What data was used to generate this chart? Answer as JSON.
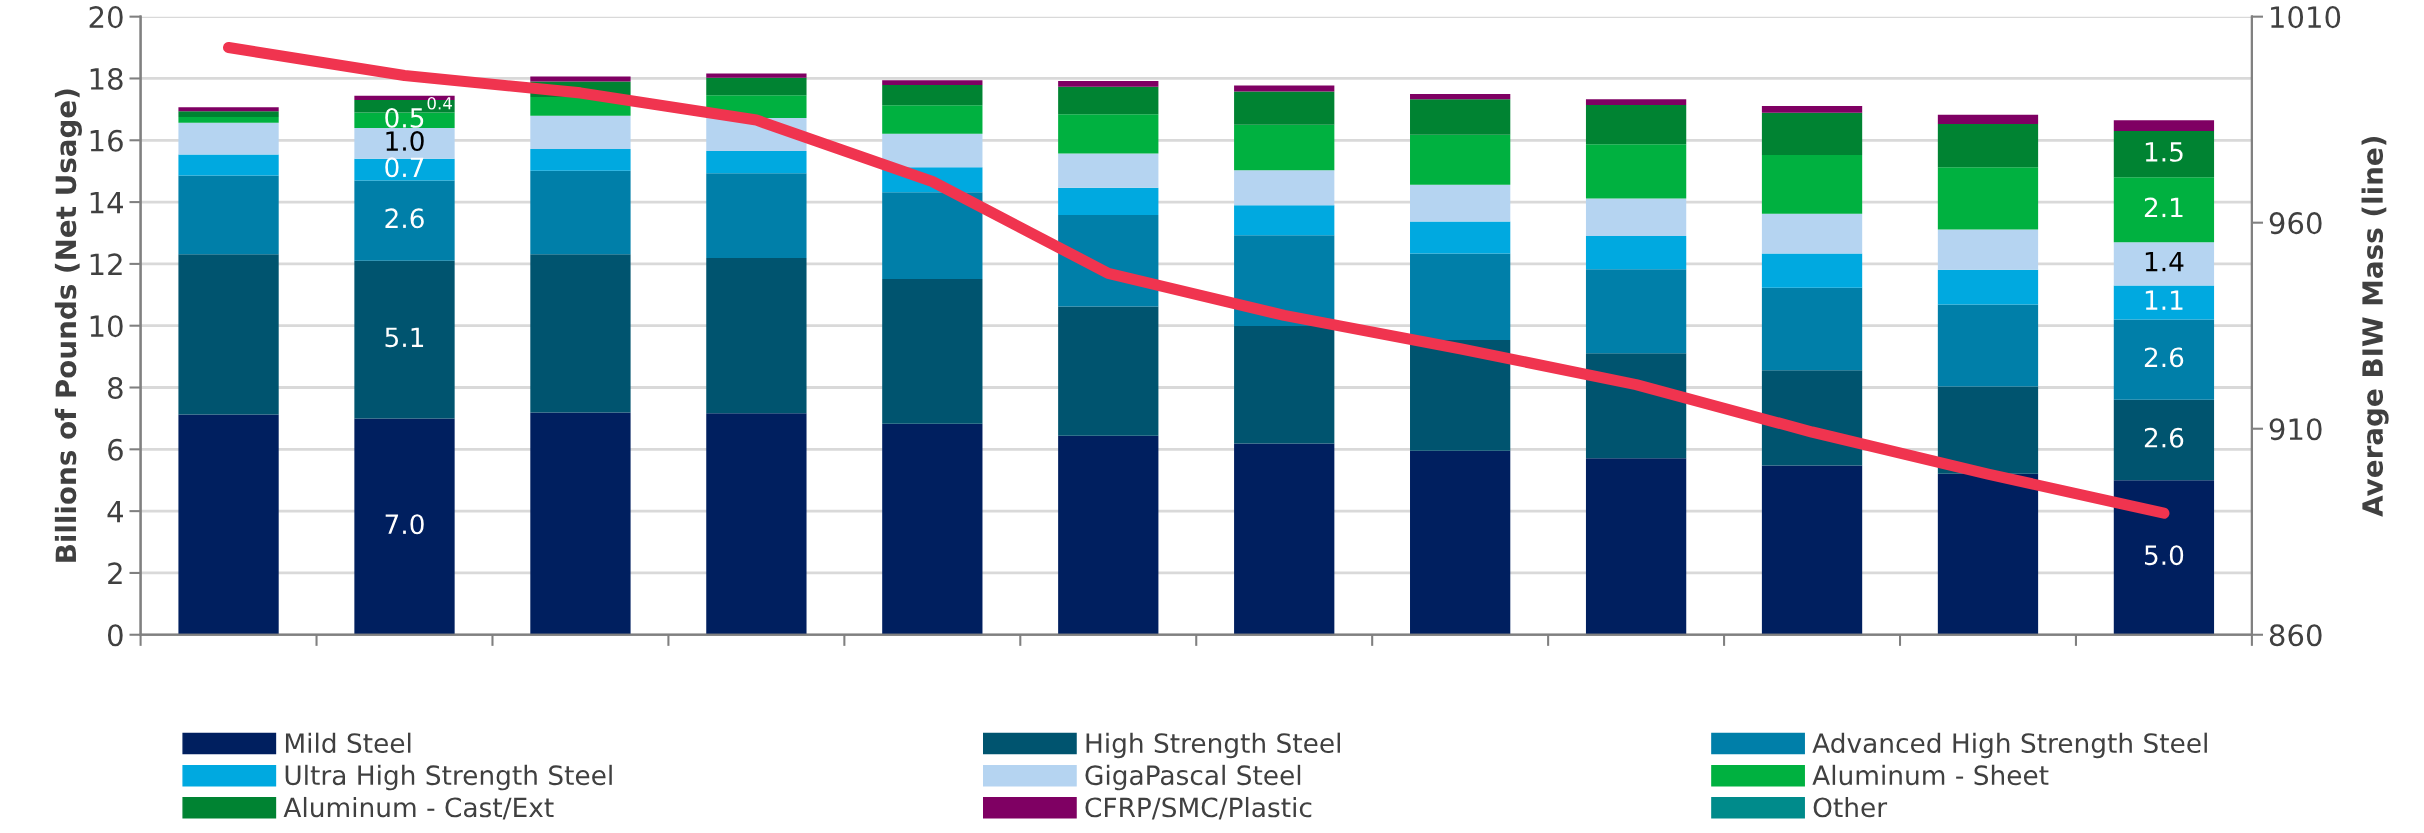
{
  "chart_data": {
    "type": "bar",
    "stacked": true,
    "ylabel": "Billions of Pounds (Net Usage)",
    "y2label": "Average BIW Mass (line)",
    "categories": [
      null,
      null,
      null,
      null,
      null,
      null,
      null,
      null,
      null,
      null,
      null,
      null
    ],
    "ylim": [
      0,
      20
    ],
    "yticks": [
      0,
      2,
      4,
      6,
      8,
      10,
      12,
      14,
      16,
      18,
      20
    ],
    "y2lim": [
      860,
      1010
    ],
    "y2ticks": [
      860,
      910,
      960,
      1010
    ],
    "grid": "y",
    "legend": "bottom",
    "series": [
      {
        "name": "Mild Steel",
        "color": "#001f5f",
        "values": [
          7.13,
          7.0,
          7.19,
          7.17,
          6.83,
          6.44,
          6.19,
          5.95,
          5.71,
          5.48,
          5.21,
          5.0
        ],
        "value_labels": [
          null,
          "7.0",
          null,
          null,
          null,
          null,
          null,
          null,
          null,
          null,
          null,
          "5.0"
        ]
      },
      {
        "name": "High Strength Steel",
        "color": "#00546f",
        "values": [
          5.18,
          5.1,
          5.12,
          5.02,
          4.68,
          4.18,
          3.8,
          3.59,
          3.4,
          3.08,
          2.82,
          2.6
        ],
        "value_labels": [
          null,
          "5.1",
          null,
          null,
          null,
          null,
          null,
          null,
          null,
          null,
          null,
          "2.6"
        ]
      },
      {
        "name": "Advanced High Strength Steel",
        "color": "#007fa9",
        "values": [
          2.55,
          2.6,
          2.7,
          2.74,
          2.81,
          2.96,
          2.94,
          2.8,
          2.72,
          2.67,
          2.66,
          2.6
        ],
        "value_labels": [
          null,
          "2.6",
          null,
          null,
          null,
          null,
          null,
          null,
          null,
          null,
          null,
          "2.6"
        ]
      },
      {
        "name": "Ultra High Strength Steel",
        "color": "#00a9e0",
        "values": [
          0.68,
          0.7,
          0.71,
          0.72,
          0.81,
          0.88,
          0.97,
          1.03,
          1.07,
          1.11,
          1.12,
          1.1
        ],
        "value_labels": [
          null,
          "0.7",
          null,
          null,
          null,
          null,
          null,
          null,
          null,
          null,
          null,
          "1.1"
        ]
      },
      {
        "name": "GigaPascal Steel",
        "color": "#b5d4f1",
        "values": [
          1.03,
          1.0,
          1.07,
          1.07,
          1.08,
          1.11,
          1.13,
          1.19,
          1.22,
          1.28,
          1.3,
          1.4
        ],
        "value_labels": [
          null,
          "1.0",
          null,
          null,
          null,
          null,
          null,
          null,
          null,
          null,
          null,
          "1.4"
        ]
      },
      {
        "name": "Aluminum - Sheet",
        "color": "#00b140",
        "values": [
          0.18,
          0.5,
          0.61,
          0.74,
          0.92,
          1.27,
          1.47,
          1.62,
          1.75,
          1.9,
          2.02,
          2.1
        ],
        "value_labels": [
          null,
          "0.5",
          null,
          null,
          null,
          null,
          null,
          null,
          null,
          null,
          null,
          "2.1"
        ]
      },
      {
        "name": "Aluminum - Cast/Ext",
        "color": "#008332",
        "values": [
          0.19,
          0.4,
          0.5,
          0.56,
          0.66,
          0.89,
          1.08,
          1.15,
          1.27,
          1.37,
          1.4,
          1.5
        ],
        "value_labels": [
          null,
          "0.4",
          null,
          null,
          null,
          null,
          null,
          null,
          null,
          null,
          null,
          "1.5"
        ]
      },
      {
        "name": "CFRP/SMC/Plastic",
        "color": "#7f0063",
        "values": [
          0.13,
          0.14,
          0.16,
          0.14,
          0.15,
          0.19,
          0.19,
          0.17,
          0.19,
          0.22,
          0.3,
          0.35
        ]
      },
      {
        "name": "Other",
        "color": "#008b8b",
        "values": [
          null,
          null,
          null,
          null,
          null,
          null,
          null,
          null,
          null,
          null,
          null,
          null
        ]
      },
      {
        "type": "line",
        "axis": "y2",
        "color": "#f0344f",
        "values": [
          1002.5,
          995.7,
          991.5,
          984.9,
          970.0,
          947.7,
          937.5,
          929.4,
          920.7,
          909.2,
          899.0,
          889.5
        ]
      }
    ]
  }
}
